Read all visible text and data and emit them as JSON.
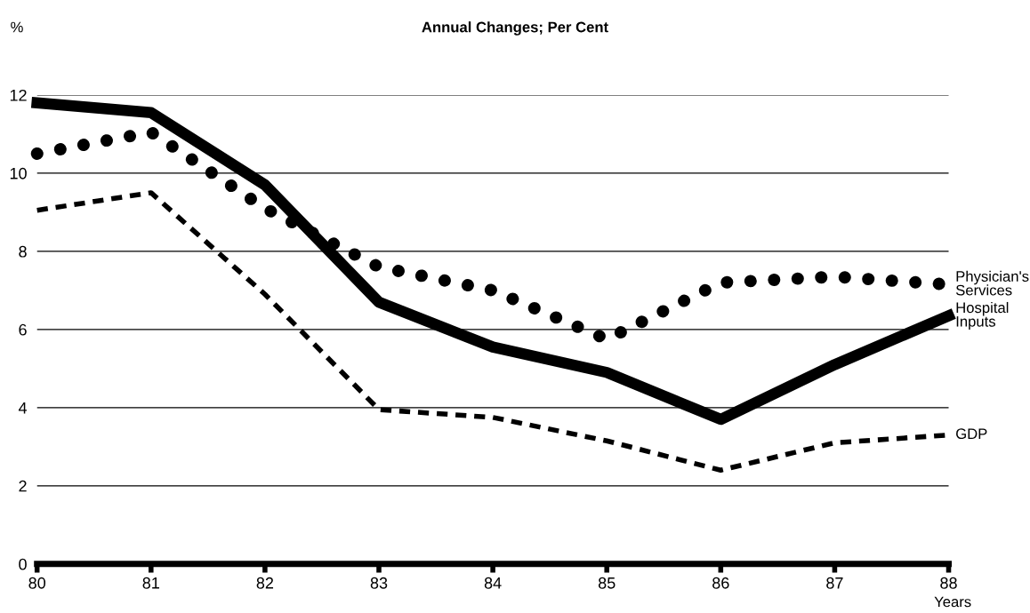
{
  "chart_data": {
    "type": "line",
    "title": "Annual Changes; Per Cent",
    "ylabel": "%",
    "xlabel": "Years",
    "x": [
      80,
      81,
      82,
      83,
      84,
      85,
      86,
      87,
      88
    ],
    "series": [
      {
        "name": "Hospital\nInputs",
        "color": "#000000",
        "line_style": "solid",
        "values": [
          11.8,
          11.55,
          9.7,
          6.7,
          5.55,
          4.9,
          3.7,
          5.1,
          6.35
        ]
      },
      {
        "name": "Physician's\nServices",
        "color": "#000000",
        "line_style": "dotted",
        "values": [
          10.5,
          11.05,
          9.1,
          7.6,
          7.0,
          5.75,
          7.2,
          7.35,
          7.15
        ]
      },
      {
        "name": "GDP",
        "color": "#000000",
        "line_style": "dashed",
        "values": [
          9.05,
          9.5,
          6.9,
          3.95,
          3.75,
          3.15,
          2.4,
          3.1,
          3.3
        ]
      }
    ],
    "xlim": [
      80,
      88
    ],
    "xticks": [
      80,
      81,
      82,
      83,
      84,
      85,
      86,
      87,
      88
    ],
    "ylim": [
      0,
      12
    ],
    "yticks": [
      0,
      2,
      4,
      6,
      8,
      10,
      12
    ],
    "grid": "y",
    "legend": false,
    "marker": "none"
  }
}
